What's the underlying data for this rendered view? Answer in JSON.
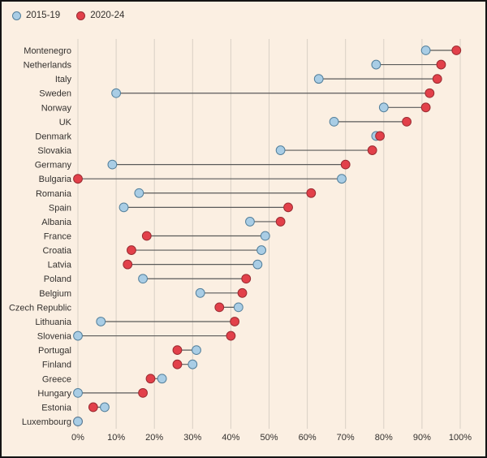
{
  "legend": {
    "items": [
      {
        "label": "2015-19"
      },
      {
        "label": "2020-24"
      }
    ]
  },
  "colors": {
    "background": "#fbefe2",
    "frame_border": "#141414",
    "grid": "#d9d0c5",
    "connector": "#5a5a5a",
    "text": "#33302e",
    "blue_fill": "#a9cde5",
    "blue_stroke": "#527f9b",
    "red_fill": "#e2404a",
    "red_stroke": "#992b31"
  },
  "chart_data": {
    "type": "dumbbell",
    "title": "",
    "unit": "%",
    "xlim": [
      0,
      100
    ],
    "grid": true,
    "legend_position": "top-left",
    "x_ticks": [
      "0%",
      "10%",
      "20%",
      "30%",
      "40%",
      "50%",
      "60%",
      "70%",
      "80%",
      "90%",
      "100%"
    ],
    "categories": [
      "Montenegro",
      "Netherlands",
      "Italy",
      "Sweden",
      "Norway",
      "UK",
      "Denmark",
      "Slovakia",
      "Germany",
      "Bulgaria",
      "Romania",
      "Spain",
      "Albania",
      "France",
      "Croatia",
      "Latvia",
      "Poland",
      "Belgium",
      "Czech Republic",
      "Lithuania",
      "Slovenia",
      "Portugal",
      "Finland",
      "Greece",
      "Hungary",
      "Estonia",
      "Luxembourg"
    ],
    "series": [
      {
        "name": "2015-19",
        "color": "#a9cde5",
        "values": [
          91,
          78,
          63,
          10,
          80,
          67,
          78,
          53,
          9,
          69,
          16,
          12,
          45,
          49,
          48,
          47,
          17,
          32,
          42,
          6,
          0,
          31,
          30,
          22,
          0,
          7,
          0
        ]
      },
      {
        "name": "2020-24",
        "color": "#e2404a",
        "values": [
          99,
          95,
          94,
          92,
          91,
          86,
          79,
          77,
          70,
          0,
          61,
          55,
          53,
          18,
          14,
          13,
          44,
          43,
          37,
          41,
          40,
          26,
          26,
          19,
          17,
          4,
          0
        ]
      }
    ]
  }
}
